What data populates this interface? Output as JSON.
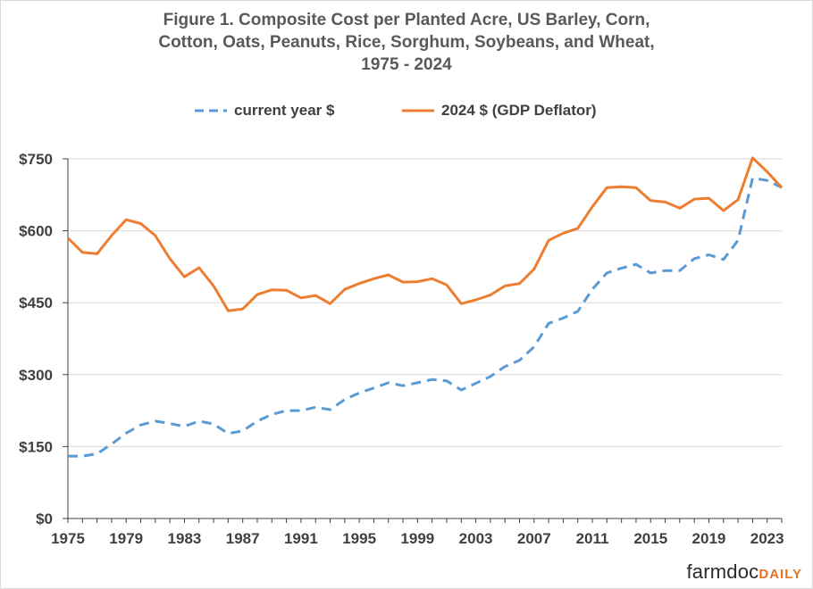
{
  "title_lines": [
    "Figure  1. Composite  Cost per Planted Acre, US Barley, Corn,",
    "Cotton, Oats, Peanuts, Rice, Sorghum, Soybeans, and Wheat,",
    "1975 - 2024"
  ],
  "brand": {
    "part1": "farmdoc",
    "part2": "DAILY"
  },
  "colors": {
    "current": "#5b9bd5",
    "real": "#ed7d31",
    "grid": "#d9d9d9",
    "axis": "#404040"
  },
  "chart_data": {
    "type": "line",
    "title": "Figure  1. Composite  Cost per Planted Acre, US Barley, Corn, Cotton, Oats, Peanuts, Rice, Sorghum, Soybeans, and Wheat, 1975 - 2024",
    "xlabel": "",
    "ylabel": "",
    "ylim": [
      0,
      750
    ],
    "xlim": [
      1975,
      2024
    ],
    "grid": true,
    "legend": "top",
    "y_ticks": [
      "$0",
      "$150",
      "$300",
      "$450",
      "$600",
      "$750"
    ],
    "y_tick_values": [
      0,
      150,
      300,
      450,
      600,
      750
    ],
    "x_ticks": [
      "1975",
      "1979",
      "1983",
      "1987",
      "1991",
      "1995",
      "1999",
      "2003",
      "2007",
      "2011",
      "2015",
      "2019",
      "2023"
    ],
    "x": [
      1975,
      1976,
      1977,
      1978,
      1979,
      1980,
      1981,
      1982,
      1983,
      1984,
      1985,
      1986,
      1987,
      1988,
      1989,
      1990,
      1991,
      1992,
      1993,
      1994,
      1995,
      1996,
      1997,
      1998,
      1999,
      2000,
      2001,
      2002,
      2003,
      2004,
      2005,
      2006,
      2007,
      2008,
      2009,
      2010,
      2011,
      2012,
      2013,
      2014,
      2015,
      2016,
      2017,
      2018,
      2019,
      2020,
      2021,
      2022,
      2023,
      2024
    ],
    "series": [
      {
        "name": "current year $",
        "style": "dashed",
        "values": [
          130,
          130,
          135,
          155,
          178,
          195,
          203,
          198,
          192,
          203,
          197,
          177,
          183,
          203,
          217,
          225,
          225,
          232,
          227,
          248,
          262,
          272,
          283,
          277,
          283,
          290,
          287,
          268,
          282,
          296,
          317,
          330,
          358,
          407,
          418,
          432,
          478,
          512,
          522,
          530,
          512,
          517,
          517,
          542,
          550,
          540,
          580,
          710,
          705,
          690
        ]
      },
      {
        "name": "2024 $ (GDP Deflator)",
        "style": "solid",
        "values": [
          585,
          555,
          552,
          590,
          623,
          615,
          590,
          542,
          504,
          523,
          485,
          433,
          437,
          467,
          477,
          476,
          460,
          465,
          448,
          478,
          490,
          500,
          508,
          493,
          494,
          500,
          487,
          448,
          456,
          466,
          485,
          490,
          520,
          580,
          595,
          605,
          650,
          690,
          692,
          690,
          663,
          660,
          647,
          666,
          668,
          642,
          665,
          752,
          723,
          690
        ]
      }
    ]
  }
}
